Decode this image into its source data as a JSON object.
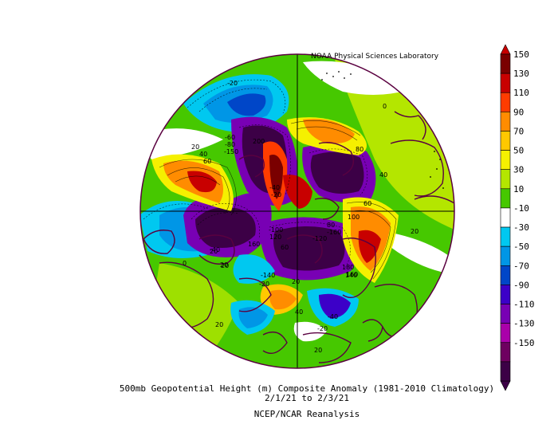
{
  "credit": "NOAA Physical Sciences Laboratory",
  "caption": {
    "title": "500mb Geopotential Height (m) Composite Anomaly (1981-2010 Climatology)",
    "dates": "2/1/21   to 2/3/21",
    "source": "NCEP/NCAR Reanalysis"
  },
  "colorbar": {
    "levels": [
      "150",
      "130",
      "110",
      "90",
      "70",
      "50",
      "30",
      "10",
      "-10",
      "-30",
      "-50",
      "-70",
      "-90",
      "-110",
      "-130",
      "-150"
    ],
    "colors": [
      "#7a0000",
      "#c80000",
      "#ff3c00",
      "#ff8c00",
      "#ffc800",
      "#f5f000",
      "#b4e600",
      "#46c800",
      "#ffffff",
      "#00c8f0",
      "#0096e6",
      "#0046c8",
      "#3c00c8",
      "#7800b4",
      "#aa00aa",
      "#6e0060",
      "#3c0046"
    ],
    "upper_end_color": "#c80000",
    "lower_end_color": "#3c0046"
  },
  "contour_labels": [
    {
      "text": "-20"
    },
    {
      "text": "0"
    },
    {
      "text": "-60"
    },
    {
      "text": "-80"
    },
    {
      "text": "-150"
    },
    {
      "text": "200"
    },
    {
      "text": "20"
    },
    {
      "text": "40"
    },
    {
      "text": "60"
    },
    {
      "text": "80"
    },
    {
      "text": "40"
    },
    {
      "text": "-40"
    },
    {
      "text": "-20"
    },
    {
      "text": "60"
    },
    {
      "text": "100"
    },
    {
      "text": "80"
    },
    {
      "text": "-160"
    },
    {
      "text": "-120"
    },
    {
      "text": "120"
    },
    {
      "text": "-100"
    },
    {
      "text": "160"
    },
    {
      "text": "60"
    },
    {
      "text": "20"
    },
    {
      "text": "-140"
    },
    {
      "text": "-20"
    },
    {
      "text": "180"
    },
    {
      "text": "160"
    },
    {
      "text": "140"
    },
    {
      "text": "20"
    },
    {
      "text": "20"
    },
    {
      "text": "40"
    },
    {
      "text": "-40"
    },
    {
      "text": "-20"
    },
    {
      "text": "20"
    },
    {
      "text": "20"
    },
    {
      "text": "20"
    },
    {
      "text": "-40"
    },
    {
      "text": "20"
    },
    {
      "text": "0"
    }
  ]
}
